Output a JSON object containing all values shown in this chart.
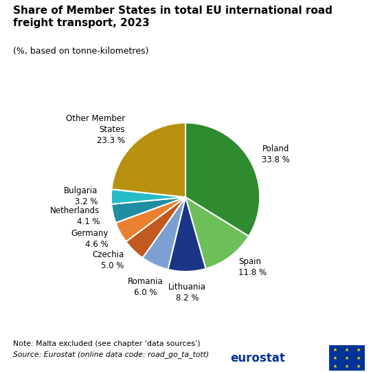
{
  "title": "Share of Member States in total EU international road\nfreight transport, 2023",
  "subtitle": "(%, based on tonne-kilometres)",
  "note": "Note: Malta excluded (see chapter ‘data sources’)",
  "source": "Source: Eurostat (online data code: road_go_ta_tott)",
  "segment_labels": [
    "Poland",
    "Spain",
    "Lithuania",
    "Romania",
    "Czechia",
    "Germany",
    "Netherlands",
    "Bulgaria",
    "Other Member\nStates"
  ],
  "segment_pcts": [
    "33.8 %",
    "11.8 %",
    "8.2 %",
    "6.0 %",
    "5.0 %",
    "4.6 %",
    "4.1 %",
    "3.2 %",
    "23.3 %"
  ],
  "values": [
    33.8,
    11.8,
    8.2,
    6.0,
    5.0,
    4.6,
    4.1,
    3.2,
    23.3
  ],
  "colors": [
    "#2e8b30",
    "#6dbf5a",
    "#1a3585",
    "#7b9fd0",
    "#c05a20",
    "#e88030",
    "#1e8ea0",
    "#25bcc8",
    "#b89010"
  ],
  "startangle": 90,
  "counterclock": false,
  "background_color": "#ffffff",
  "title_fontsize": 11,
  "subtitle_fontsize": 9,
  "label_fontsize": 8.5,
  "footer_fontsize": 7.8
}
